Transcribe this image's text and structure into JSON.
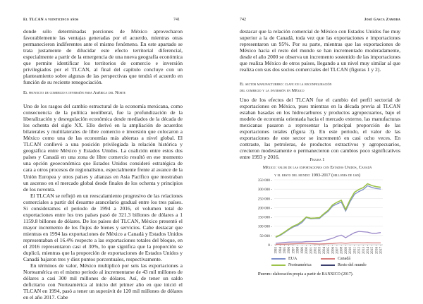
{
  "left": {
    "header": "El TLCAN a veinticinco años",
    "page_number": "741",
    "para1": "donde sólo determinadas porciones de México aprovecharon favorablemente las ventajas generadas por el acuerdo, mientras otras permanecieron indiferentes ante el mismo fenómeno. En este apartado se trata justamente de dilucidar este efecto territorial diferencial, especialmente a partir de la emergencia de una nueva geografía económica que permite identificar los territorios de comercio e inversión privilegiados por el TLCAN, al final del capítulo concluye con un planteamiento sobre algunas de las perspectivas que tendrá el acuerdo en función de su reciente renegociación.",
    "section_title": "El proyecto de comercio e inversión para América del Norte",
    "para2": "Uno de los rasgos del cambio estructural de la economía mexicana, como consecuencia de la política neoliberal, fue la profundización de la liberalización y desregulación económica desde mediados de la década de los ochenta del siglo XX. Ello derivó en la ampliación de acuerdos bilaterales y multilaterales de libre comercio e inversión que colocaron a México como una de las economías más abiertas a nivel global. El TLCAN conllevó a una posición privilegiada la relación histórica y geográfica entre México y Estados Unidos. La coalición entre estos dos países y Canadá en una zona de libre comercio resultó en ese momento una opción geoeconómica que Estados Unidos consideró estratégica de cara a otros procesos de regionalismo, especialmente frente al avance de la Unión Europea y otros países y alianzas en Asia Pacífico que mostraban un ascenso en el mercado global desde finales de los ochenta y principios de los noventa.",
    "para3": "El TLCAN se reflejó en un reescalamiento progresivo de las relaciones comerciales a partir del desarme arancelario gradual entre los tres países. Si consideramos el periodo de 1994 a 2016, el volumen total de exportaciones entre los tres países pasó de 321.3 billones de dólares a 1 1159.8 billones de dólares. De los países del TLCAN, México presentó el mayor incremento de los flujos de bienes y servicios. Cabe destacar que mientras en 1994 las exportaciones de México a Canadá y Estados Unidos representaban el 16.4% respecto a las exportaciones totales del bloque, en el 2016 representaron casi el 30%, lo que significa que la proporción se duplicó, mientras que la proporción de exportaciones de Estados Unidos y Canadá bajaron tres y diez puntos porcentuales, respectivamente.",
    "para4": "En términos de valor, México multiplicó por seis las exportaciones a Norteamérica en el mismo periodo al incrementarse de 43 mil millones de dólares a casi 300 mil millones de dólares. Así, de tener un saldo deficitario con Norteamérica al inicio del primer año en que inició el TLCAN en 1994, pasó a tener un superávit de 120 mil millones de dólares en el año 2017. Cabe"
  },
  "right": {
    "page_number": "742",
    "header": "José Gasca Zamora",
    "para1": "destacar que la relación comercial de México con Estados Unidos fue muy superior a la de Canadá, toda vez que las exportaciones e importaciones representaron un 95%. Por su parte, mientras que las exportaciones de México hacia el resto del mundo se han incrementado moderadamente, desde el año 2000 se observa un incremento sostenido de las importaciones que realiza México de otros países, llegando a un nivel muy similar al que realiza con sus dos socios comerciales del TLCAN (figuras 1 y 2).",
    "section_title_1": "El sector manufacturero: clave en la reconfiguración",
    "section_title_2": "del comercio y la inversión en México",
    "para2": "Uno de los efectos del TLCAN fue el cambio del perfil sectorial de exportaciones en México, pues mientras en la década previa al TLCAN estaban basadas en los hidrocarburos y productos agropecuarios, bajo el modelo de economía orientada hacia el mercado externo, las manufacturas mexicanas pasaron a representar la principal proporción de las exportaciones totales (figura 3). En este periodo, el valor de las exportaciones de este sector se incrementó en casi ocho veces. En contraste, las petroleras, de productos extractivos y agropecuarios, crecieron modestamente o permanecieron con cambios poco significativos entre 1993 y 2016.",
    "figure_label": "Figura 1",
    "figure_title_1": "México: valor de las exportaciones con Estados Unidos, Canadá",
    "figure_title_2": "y el resto del mundo: 1993-2017 (millones de usd)",
    "source_label": "Fuente:",
    "source_text": "elaboración propia a partir de BANXICO (2017)."
  },
  "chart_data": {
    "type": "line",
    "x": [
      1993,
      1994,
      1995,
      1996,
      1997,
      1998,
      1999,
      2000,
      2001,
      2002,
      2003,
      2004,
      2005,
      2006,
      2007,
      2008,
      2009,
      2010,
      2011,
      2012,
      2013,
      2014,
      2015,
      2016,
      2017
    ],
    "ylim": [
      0,
      350000
    ],
    "yticks": [
      "0",
      "50 000",
      "100 000",
      "150 000",
      "200 000",
      "250 000",
      "300 000",
      "350 000"
    ],
    "grid": true,
    "legend": "bottom",
    "series": [
      {
        "name": "EUA",
        "color": "#7f8fc8",
        "values": [
          40000,
          50000,
          65000,
          81000,
          95000,
          104000,
          120000,
          147000,
          140000,
          141000,
          142000,
          162000,
          180000,
          208000,
          220000,
          230000,
          182000,
          232000,
          272000,
          287000,
          298000,
          318000,
          309000,
          303000,
          300000
        ]
      },
      {
        "name": "Canadá",
        "color": "#d98080",
        "values": [
          2000,
          3000,
          3000,
          4000,
          5000,
          6000,
          7000,
          8000,
          6000,
          5000,
          4000,
          5000,
          6000,
          7000,
          9000,
          10000,
          8000,
          10000,
          11000,
          11000,
          10000,
          11000,
          10000,
          10000,
          10000
        ]
      },
      {
        "name": "Norteamérica",
        "color": "#9cc24a",
        "values": [
          42000,
          53000,
          68000,
          85000,
          100000,
          110000,
          127000,
          150000,
          143000,
          144000,
          146000,
          167000,
          186000,
          215000,
          229000,
          240000,
          190000,
          242000,
          283000,
          298000,
          308000,
          329000,
          319000,
          313000,
          310000
        ]
      },
      {
        "name": "Resto del mundo",
        "color": "#3a3f6e",
        "lineColor": "#9a88c8",
        "values": [
          8000,
          10000,
          12000,
          14000,
          15000,
          15000,
          15000,
          17000,
          17000,
          17000,
          18000,
          22000,
          28000,
          35000,
          45000,
          52000,
          38000,
          52000,
          65000,
          72000,
          70000,
          68000,
          62000,
          62000,
          66000
        ]
      }
    ]
  }
}
